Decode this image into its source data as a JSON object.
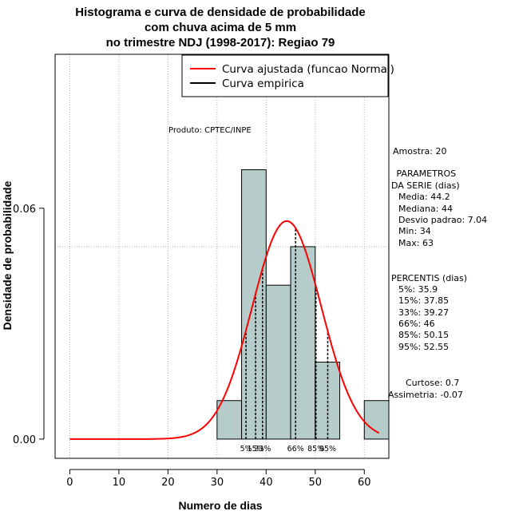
{
  "chart_data": {
    "type": "bar",
    "title_lines": [
      "Histograma e curva de densidade de probabilidade",
      "com chuva acima de 5 mm",
      "no trimestre NDJ (1998-2017): Regiao 79"
    ],
    "xlabel": "Numero de dias",
    "ylabel": "Densidade de probabilidade",
    "xlim": [
      -3,
      65
    ],
    "ylim": [
      -0.005,
      0.1
    ],
    "x_ticks": [
      0,
      10,
      20,
      30,
      40,
      50,
      60
    ],
    "x_tick_labels": [
      "0",
      "10",
      "20",
      "30",
      "40",
      "50",
      "60"
    ],
    "y_ticks": [
      0.0,
      0.06
    ],
    "y_tick_labels": [
      "0.00",
      "0.06"
    ],
    "grid_y": [
      0.05,
      0.1
    ],
    "bins": [
      {
        "start": 30,
        "end": 35,
        "density": 0.01
      },
      {
        "start": 35,
        "end": 40,
        "density": 0.07
      },
      {
        "start": 40,
        "end": 45,
        "density": 0.04
      },
      {
        "start": 45,
        "end": 50,
        "density": 0.05
      },
      {
        "start": 50,
        "end": 55,
        "density": 0.02
      },
      {
        "start": 55,
        "end": 60,
        "density": 0.0
      },
      {
        "start": 60,
        "end": 65,
        "density": 0.01
      }
    ],
    "normal_curve": {
      "mean": 44.2,
      "sd": 7.04,
      "x_from": 0,
      "x_to": 63
    },
    "percentiles": [
      {
        "label": "5%",
        "value": 35.9
      },
      {
        "label": "15%",
        "value": 37.85
      },
      {
        "label": "33%",
        "value": 39.27
      },
      {
        "label": "66%",
        "value": 46
      },
      {
        "label": "85%",
        "value": 50.15
      },
      {
        "label": "95%",
        "value": 52.55
      }
    ],
    "legend": [
      {
        "label": "Curva ajustada (funcao Normal)",
        "color": "#ff0000"
      },
      {
        "label": "Curva empirica",
        "color": "#000000"
      }
    ],
    "legend_position": "top-right",
    "product_label": "Produto: CPTEC/INPE",
    "colors": {
      "bar_fill": "#b5cccb",
      "curve": "#ff0000",
      "grid": "#b0b0b0"
    },
    "side_text": {
      "amostra": "Amostra: 20",
      "parametros_title": [
        " PARAMETROS",
        "DA SERIE (dias)"
      ],
      "parametros": [
        "Media: 44.2",
        "Mediana: 44",
        "Desvio padrao: 7.04",
        "Min: 34",
        "Max: 63"
      ],
      "percentis_title": "PERCENTIS (dias)",
      "percentis": [
        "5%: 35.9",
        "15%: 37.85",
        "33%: 39.27",
        "66%: 46",
        "85%: 50.15",
        "95%: 52.55"
      ],
      "curtose": "Curtose: 0.7",
      "assimetria": "Assimetria: -0.07"
    }
  }
}
